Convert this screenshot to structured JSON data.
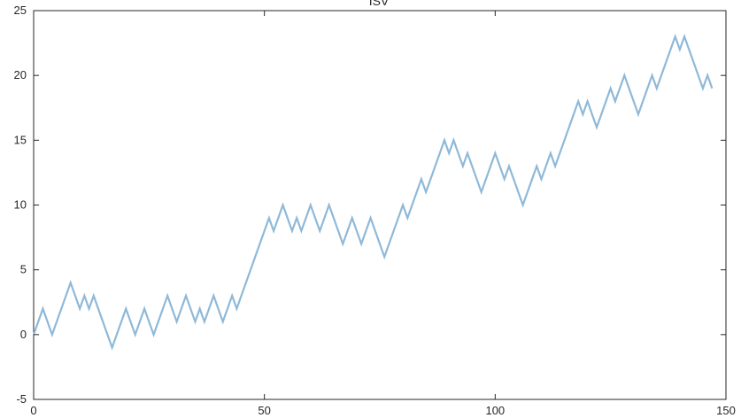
{
  "chart_data": {
    "type": "line",
    "title": "ISV",
    "xlabel": "",
    "ylabel": "",
    "xlim": [
      0,
      150
    ],
    "ylim": [
      -5,
      25
    ],
    "x_ticks": [
      0,
      50,
      100,
      150
    ],
    "y_ticks": [
      -5,
      0,
      5,
      10,
      15,
      20,
      25
    ],
    "grid": false,
    "line_color": "#8fb9d8",
    "series": [
      {
        "x": [
          0,
          2,
          4,
          6,
          8,
          9,
          10,
          11,
          12,
          13,
          14,
          15,
          16,
          17,
          18,
          19,
          20,
          21,
          22,
          23,
          24,
          25,
          26,
          27,
          28,
          29,
          30,
          31,
          32,
          33,
          34,
          35,
          36,
          37,
          38,
          39,
          40,
          41,
          42,
          43,
          44,
          45,
          46,
          47,
          48,
          49,
          50,
          51,
          52,
          53,
          54,
          55,
          56,
          57,
          58,
          59,
          60,
          61,
          62,
          63,
          64,
          65,
          66,
          67,
          68,
          69,
          70,
          71,
          72,
          73,
          74,
          75,
          76,
          77,
          78,
          79,
          80,
          81,
          82,
          83,
          84,
          85,
          86,
          87,
          88,
          89,
          90,
          91,
          92,
          93,
          94,
          95,
          96,
          97,
          98,
          99,
          100,
          101,
          102,
          103,
          104,
          105,
          106,
          107,
          108,
          109,
          110,
          111,
          112,
          113,
          114,
          115,
          116,
          117,
          118,
          119,
          120,
          121,
          122,
          123,
          124,
          125,
          126,
          127,
          128,
          129,
          130,
          131,
          132,
          133,
          134,
          135,
          136,
          137,
          138,
          139,
          140,
          141,
          142,
          143,
          144,
          145,
          146,
          147
        ],
        "values": [
          0,
          2,
          0,
          2,
          4,
          3,
          2,
          3,
          2,
          3,
          2,
          1,
          0,
          -1,
          0,
          1,
          2,
          1,
          0,
          1,
          2,
          1,
          0,
          1,
          2,
          3,
          2,
          1,
          2,
          3,
          2,
          1,
          2,
          1,
          2,
          3,
          2,
          1,
          2,
          3,
          2,
          3,
          4,
          5,
          6,
          7,
          8,
          9,
          8,
          9,
          10,
          9,
          8,
          9,
          8,
          9,
          10,
          9,
          8,
          9,
          10,
          9,
          8,
          7,
          8,
          9,
          8,
          7,
          8,
          9,
          8,
          7,
          6,
          7,
          8,
          9,
          10,
          9,
          10,
          11,
          12,
          11,
          12,
          13,
          14,
          15,
          14,
          15,
          14,
          13,
          14,
          13,
          12,
          11,
          12,
          13,
          14,
          13,
          12,
          13,
          12,
          11,
          10,
          11,
          12,
          13,
          12,
          13,
          14,
          13,
          14,
          15,
          16,
          17,
          18,
          17,
          18,
          17,
          16,
          17,
          18,
          19,
          18,
          19,
          20,
          19,
          18,
          17,
          18,
          19,
          20,
          19,
          20,
          21,
          22,
          23,
          22,
          23,
          22,
          21,
          20,
          19,
          20,
          19
        ]
      }
    ]
  }
}
